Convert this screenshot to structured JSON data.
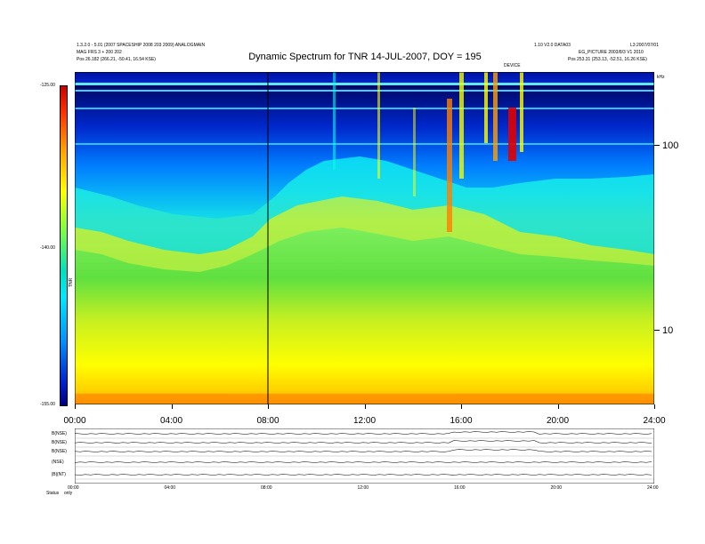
{
  "header": {
    "left_line1": "1.3.2.0 - 5.01 (2007 SPACESHIP 2008 203 2009) ANALOGMAIN",
    "left_line2": "MAG FRS 3 + 200 202",
    "left_line3_label": "Pos",
    "left_line3_value": "26.182 (266.21, -50.41, 16.54 KSE)",
    "right_line1": "1.10 V2.0 DATA03",
    "right_line1b": "L3:2007/07/01",
    "right_line2": "EG_PICTURE 2003/8/3 V1 2010",
    "right_line3_label": "Pos",
    "right_line3_value": "253.31 (253.13, -52.51, 16.26 KSE)",
    "marker_label": "DEVICE"
  },
  "chart_data": {
    "type": "heatmap",
    "title": "Dynamic Spectrum for TNR 14-JUL-2007, DOY = 195",
    "x_ticks": [
      "00:00",
      "04:00",
      "08:00",
      "12:00",
      "16:00",
      "20:00",
      "24:00"
    ],
    "x_range_hours": [
      0,
      24
    ],
    "y_right_ticks": [
      "100",
      "10"
    ],
    "y_right_unit": "kHz",
    "y_scale": "log",
    "colorbar": {
      "label": "TNR",
      "ticks": [
        "-125.00",
        "-140.00",
        "-155.00"
      ],
      "range": [
        -155,
        -125
      ],
      "colors": [
        "#c80000",
        "#ff3000",
        "#ffa000",
        "#ffff00",
        "#80ff40",
        "#00e0c0",
        "#00e8ff",
        "#0090ff",
        "#0020d0",
        "#000080"
      ]
    },
    "vertical_marker_hour": 8
  },
  "lower_panel": {
    "row_labels": [
      "B(NSE)",
      "B(NSE)",
      "B(NSE)",
      "(NSE)",
      "|B|(NT)"
    ],
    "x_ticks": [
      "00:00",
      "04:00",
      "08:00",
      "12:00",
      "16:00",
      "20:00",
      "24:00"
    ],
    "footer_left": "Status",
    "footer_left2": "only"
  }
}
